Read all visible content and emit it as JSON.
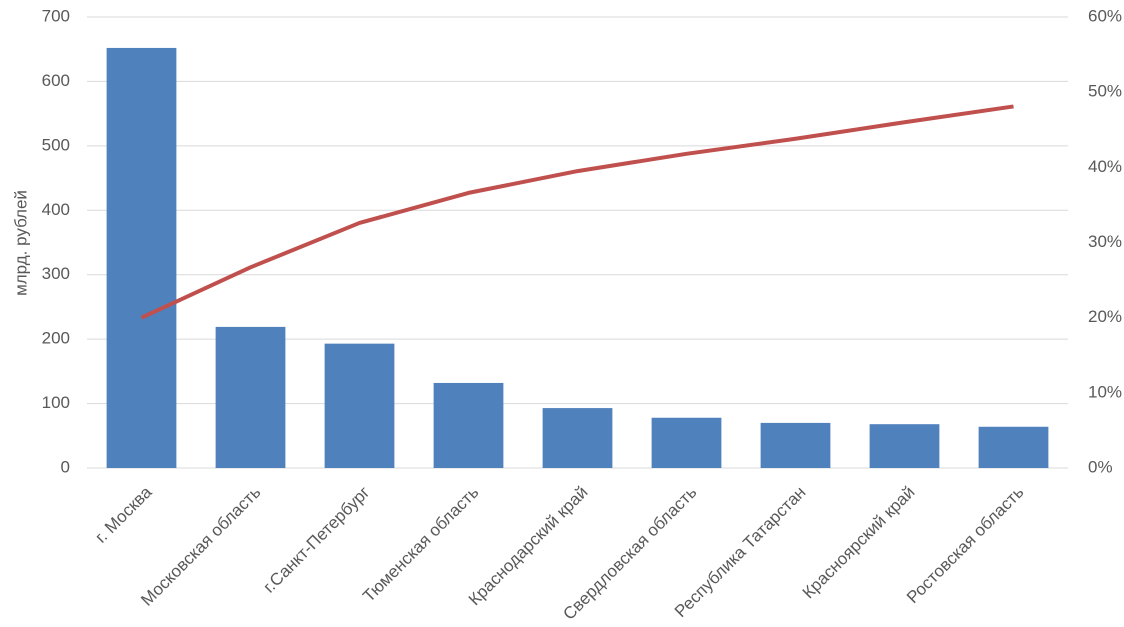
{
  "chart_data": {
    "type": "bar_line",
    "y_label": "млрд. рублей",
    "categories": [
      "г. Москва",
      "Московская область",
      "г.Санкт-Петербург",
      "Тюменская область",
      "Краснодарский край",
      "Свердловская область",
      "Республика Татарстан",
      "Красноярский край",
      "Ростовская область"
    ],
    "series": [
      {
        "type": "bar",
        "color": "#4f81bd",
        "values": [
          652,
          219,
          193,
          132,
          93,
          78,
          70,
          68,
          64
        ]
      },
      {
        "type": "line",
        "color": "#c0504d",
        "axis": "y2",
        "values": [
          20,
          26.7,
          32.6,
          36.6,
          39.5,
          41.8,
          43.8,
          46,
          48.1
        ]
      }
    ],
    "ylim": [
      0,
      700
    ],
    "yticks": [
      0,
      100,
      200,
      300,
      400,
      500,
      600,
      700
    ],
    "y2lim": [
      0,
      60
    ],
    "y2ticks": [
      {
        "value": 0,
        "label": "0%"
      },
      {
        "value": 10,
        "label": "10%"
      },
      {
        "value": 20,
        "label": "20%"
      },
      {
        "value": 30,
        "label": "30%"
      },
      {
        "value": 40,
        "label": "40%"
      },
      {
        "value": 50,
        "label": "50%"
      },
      {
        "value": 60,
        "label": "60%"
      }
    ],
    "grid": true
  }
}
